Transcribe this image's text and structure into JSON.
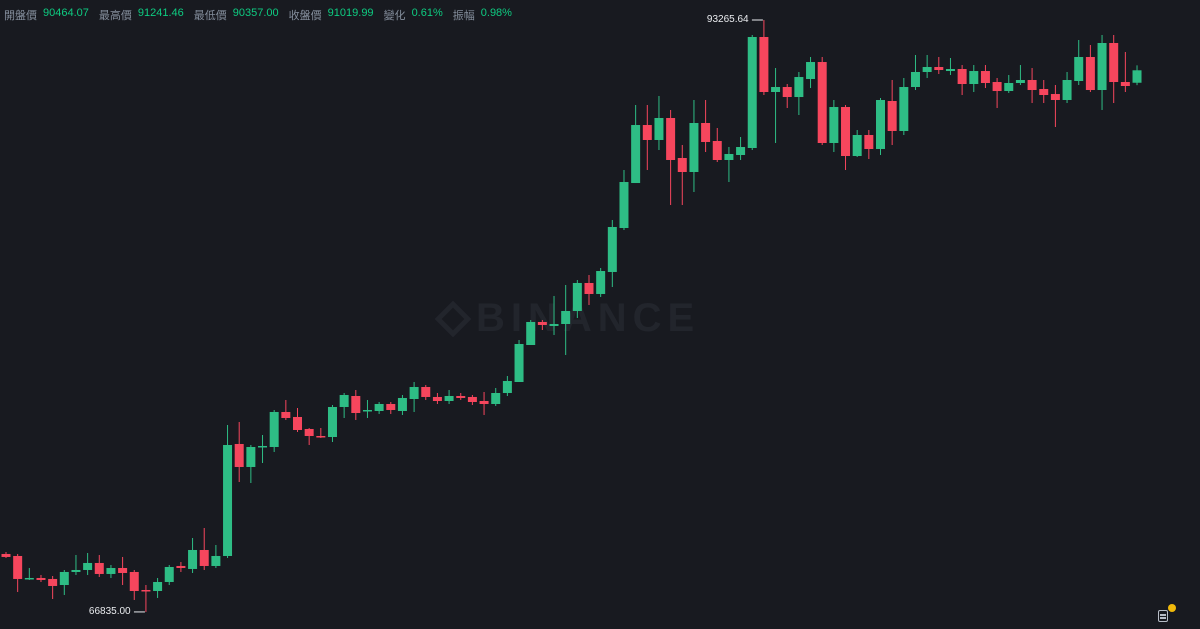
{
  "header": {
    "items": [
      {
        "label": "開盤價",
        "value": "90464.07"
      },
      {
        "label": "最高價",
        "value": "91241.46"
      },
      {
        "label": "最低價",
        "value": "90357.00"
      },
      {
        "label": "收盤價",
        "value": "91019.99"
      },
      {
        "label": "變化",
        "value": "0.61%"
      },
      {
        "label": "振幅",
        "value": "0.98%"
      }
    ]
  },
  "watermark": "BINANCE",
  "colors": {
    "background": "#181a20",
    "up": "#2ebd85",
    "down": "#f6465d",
    "label": "#848e9c",
    "value": "#0ecb81"
  },
  "icons": {
    "notes": "notes-icon",
    "notification": "notification-dot"
  },
  "chart_data": {
    "type": "candlestick",
    "title": "",
    "xlabel": "",
    "ylabel": "",
    "grid": false,
    "ylim": [
      66073,
      94159
    ],
    "annotations": {
      "max_label": "93265.64",
      "min_label": "66835.00"
    },
    "ohlc": [
      [
        69423,
        69512,
        69244,
        69289
      ],
      [
        69333,
        69423,
        67726,
        68307
      ],
      [
        68307,
        68797,
        68262,
        68351
      ],
      [
        68351,
        68485,
        68172,
        68262
      ],
      [
        68307,
        68440,
        67413,
        67994
      ],
      [
        68038,
        68708,
        67592,
        68619
      ],
      [
        68619,
        69378,
        68485,
        68708
      ],
      [
        68708,
        69467,
        68485,
        69021
      ],
      [
        69021,
        69378,
        68396,
        68530
      ],
      [
        68530,
        68931,
        68351,
        68797
      ],
      [
        68797,
        69289,
        68038,
        68574
      ],
      [
        68619,
        68708,
        67369,
        67770
      ],
      [
        67815,
        68038,
        66835,
        67770
      ],
      [
        67770,
        68351,
        67458,
        68172
      ],
      [
        68172,
        68931,
        68038,
        68842
      ],
      [
        68887,
        69065,
        68619,
        68797
      ],
      [
        68753,
        70137,
        68574,
        69601
      ],
      [
        69601,
        70583,
        68708,
        68887
      ],
      [
        68887,
        69824,
        68797,
        69333
      ],
      [
        69333,
        75182,
        69244,
        74289
      ],
      [
        74334,
        75316,
        72637,
        73307
      ],
      [
        73307,
        74289,
        72592,
        74200
      ],
      [
        74200,
        74736,
        73485,
        74245
      ],
      [
        74200,
        75852,
        73977,
        75763
      ],
      [
        75763,
        76299,
        75406,
        75495
      ],
      [
        75540,
        75941,
        74870,
        74959
      ],
      [
        75004,
        75048,
        74289,
        74691
      ],
      [
        74691,
        75048,
        74602,
        74646
      ],
      [
        74646,
        76075,
        74423,
        75986
      ],
      [
        75986,
        76611,
        75495,
        76522
      ],
      [
        76477,
        76745,
        75406,
        75718
      ],
      [
        75807,
        76299,
        75495,
        75852
      ],
      [
        75807,
        76209,
        75674,
        76120
      ],
      [
        76120,
        76209,
        75674,
        75852
      ],
      [
        75807,
        76522,
        75629,
        76388
      ],
      [
        76343,
        77102,
        75763,
        76879
      ],
      [
        76879,
        76968,
        76299,
        76433
      ],
      [
        76433,
        76611,
        76120,
        76254
      ],
      [
        76254,
        76745,
        76120,
        76477
      ],
      [
        76477,
        76611,
        76299,
        76388
      ],
      [
        76433,
        76522,
        76075,
        76209
      ],
      [
        76254,
        76656,
        75629,
        76120
      ],
      [
        76120,
        76834,
        76031,
        76611
      ],
      [
        76611,
        77370,
        76477,
        77147
      ],
      [
        77102,
        78978,
        77102,
        78799
      ],
      [
        78754,
        79871,
        78754,
        79782
      ],
      [
        79782,
        79871,
        79424,
        79648
      ],
      [
        79603,
        80943,
        79201,
        79692
      ],
      [
        79692,
        81434,
        78308,
        80273
      ],
      [
        80273,
        81657,
        79960,
        81523
      ],
      [
        81523,
        81880,
        80541,
        81032
      ],
      [
        81032,
        82192,
        80898,
        82058
      ],
      [
        82014,
        84335,
        81344,
        84023
      ],
      [
        83978,
        86568,
        83889,
        86032
      ],
      [
        85987,
        89471,
        85987,
        88577
      ],
      [
        88577,
        89471,
        86568,
        87908
      ],
      [
        87908,
        89872,
        87461,
        88890
      ],
      [
        88890,
        89248,
        85005,
        87015
      ],
      [
        87104,
        87685,
        85005,
        86479
      ],
      [
        86479,
        89694,
        85586,
        88667
      ],
      [
        88667,
        89694,
        87372,
        87819
      ],
      [
        87863,
        88444,
        86925,
        87015
      ],
      [
        87015,
        87595,
        86032,
        87283
      ],
      [
        87238,
        88042,
        87015,
        87595
      ],
      [
        87551,
        92596,
        87461,
        92507
      ],
      [
        92507,
        93265.64,
        89917,
        90051
      ],
      [
        90051,
        91122,
        87774,
        90274
      ],
      [
        90274,
        90408,
        89337,
        89827
      ],
      [
        89827,
        90944,
        89024,
        90720
      ],
      [
        90631,
        91614,
        90229,
        91390
      ],
      [
        91390,
        91614,
        87685,
        87774
      ],
      [
        87774,
        89694,
        87372,
        89381
      ],
      [
        89381,
        89471,
        86568,
        87193
      ],
      [
        87193,
        88354,
        87149,
        88131
      ],
      [
        88131,
        88354,
        87059,
        87506
      ],
      [
        87506,
        89783,
        87238,
        89694
      ],
      [
        89649,
        90587,
        87685,
        88310
      ],
      [
        88310,
        90676,
        88131,
        90274
      ],
      [
        90274,
        91703,
        90140,
        90944
      ],
      [
        90944,
        91703,
        90676,
        91167
      ],
      [
        91167,
        91614,
        90855,
        91033
      ],
      [
        90988,
        91569,
        90810,
        91078
      ],
      [
        91078,
        91256,
        89917,
        90408
      ],
      [
        90408,
        91256,
        90051,
        90988
      ],
      [
        90988,
        91256,
        90229,
        90453
      ],
      [
        90497,
        90676,
        89337,
        90095
      ],
      [
        90095,
        90810,
        90006,
        90453
      ],
      [
        90453,
        91256,
        90363,
        90587
      ],
      [
        90587,
        91122,
        89560,
        90140
      ],
      [
        90185,
        90587,
        89560,
        89917
      ],
      [
        89961,
        90363,
        88488,
        89694
      ],
      [
        89694,
        90944,
        89560,
        90587
      ],
      [
        90542,
        92373,
        90363,
        91614
      ],
      [
        91614,
        92149,
        90051,
        90140
      ],
      [
        90140,
        92596,
        89248,
        92239
      ],
      [
        92239,
        92596,
        89560,
        90497
      ],
      [
        90497,
        91837,
        90051,
        90319
      ],
      [
        90464.07,
        91241.46,
        90357.0,
        91019.99
      ]
    ]
  }
}
